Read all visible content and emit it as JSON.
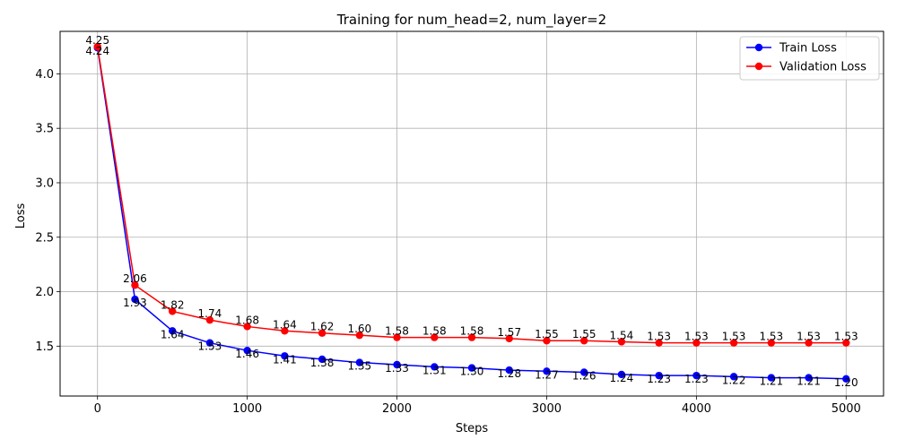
{
  "chart_data": {
    "type": "line",
    "title": "Training for num_head=2, num_layer=2",
    "xlabel": "Steps",
    "ylabel": "Loss",
    "xlim": [
      -250,
      5250
    ],
    "ylim": [
      1.042,
      4.39
    ],
    "x_ticks": [
      0,
      1000,
      2000,
      3000,
      4000,
      5000
    ],
    "y_ticks": [
      1.5,
      2.0,
      2.5,
      3.0,
      3.5,
      4.0
    ],
    "grid": true,
    "legend_position": "top-right",
    "x": [
      0,
      250,
      500,
      750,
      1000,
      1250,
      1500,
      1750,
      2000,
      2250,
      2500,
      2750,
      3000,
      3250,
      3500,
      3750,
      4000,
      4250,
      4500,
      4750,
      5000
    ],
    "series": [
      {
        "name": "Train Loss",
        "color": "#0000ff",
        "label_position": "below",
        "values": [
          4.24,
          1.93,
          1.64,
          1.53,
          1.46,
          1.41,
          1.38,
          1.35,
          1.33,
          1.31,
          1.3,
          1.28,
          1.27,
          1.26,
          1.24,
          1.23,
          1.23,
          1.22,
          1.21,
          1.21,
          1.2
        ],
        "labels": [
          "4.24",
          "1.93",
          "1.64",
          "1.53",
          "1.46",
          "1.41",
          "1.38",
          "1.35",
          "1.33",
          "1.31",
          "1.30",
          "1.28",
          "1.27",
          "1.26",
          "1.24",
          "1.23",
          "1.23",
          "1.22",
          "1.21",
          "1.21",
          "1.20"
        ]
      },
      {
        "name": "Validation Loss",
        "color": "#ff0000",
        "label_position": "above",
        "values": [
          4.25,
          2.06,
          1.82,
          1.74,
          1.68,
          1.64,
          1.62,
          1.6,
          1.58,
          1.58,
          1.58,
          1.57,
          1.55,
          1.55,
          1.54,
          1.53,
          1.53,
          1.53,
          1.53,
          1.53,
          1.53
        ],
        "labels": [
          "4.25",
          "2.06",
          "1.82",
          "1.74",
          "1.68",
          "1.64",
          "1.62",
          "1.60",
          "1.58",
          "1.58",
          "1.58",
          "1.57",
          "1.55",
          "1.55",
          "1.54",
          "1.53",
          "1.53",
          "1.53",
          "1.53",
          "1.53",
          "1.53"
        ]
      }
    ]
  }
}
